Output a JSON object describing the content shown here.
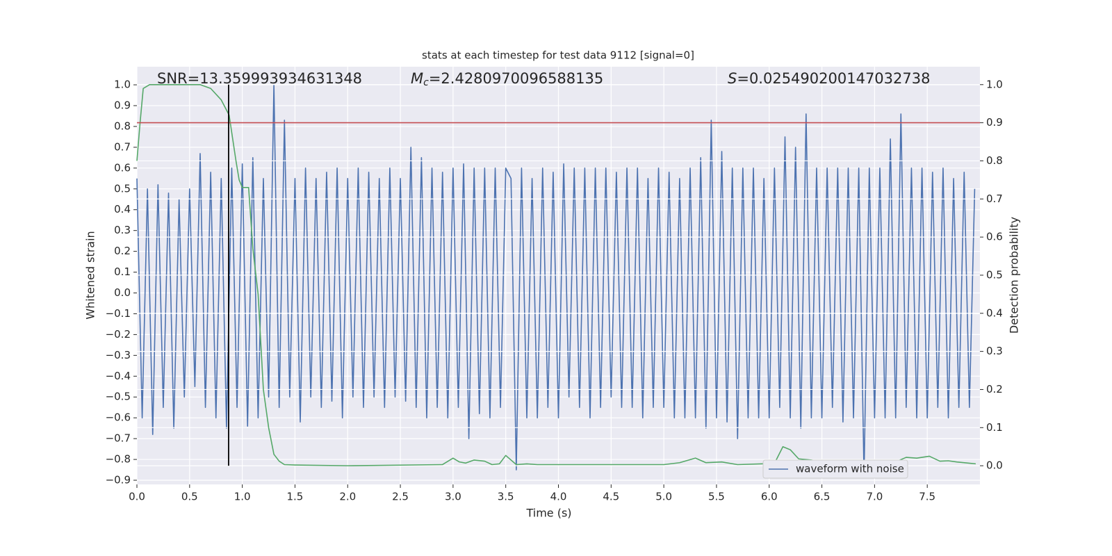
{
  "chart_data": {
    "type": "line",
    "title": "stats at each timestep for test data 9112 [signal=0]",
    "xlabel": "Time (s)",
    "ylabel": "Whitened strain",
    "y2label": "Detection probability",
    "xlim": [
      0,
      8.0
    ],
    "ylim": [
      -0.92,
      1.087
    ],
    "y2lim": [
      -0.049,
      1.047
    ],
    "xticks": [
      {
        "value": 0,
        "label": "0.0"
      },
      {
        "value": 0.5,
        "label": "0.5"
      },
      {
        "value": 1,
        "label": "1.0"
      },
      {
        "value": 1.5,
        "label": "1.5"
      },
      {
        "value": 2,
        "label": "2.0"
      },
      {
        "value": 2.5,
        "label": "2.5"
      },
      {
        "value": 3,
        "label": "3.0"
      },
      {
        "value": 3.5,
        "label": "3.5"
      },
      {
        "value": 4,
        "label": "4.0"
      },
      {
        "value": 4.5,
        "label": "4.5"
      },
      {
        "value": 5,
        "label": "5.0"
      },
      {
        "value": 5.5,
        "label": "5.5"
      },
      {
        "value": 6,
        "label": "6.0"
      },
      {
        "value": 6.5,
        "label": "6.5"
      },
      {
        "value": 7,
        "label": "7.0"
      },
      {
        "value": 7.5,
        "label": "7.5"
      }
    ],
    "yticks": [
      {
        "value": -0.9,
        "label": "−0.9"
      },
      {
        "value": -0.8,
        "label": "−0.8"
      },
      {
        "value": -0.7,
        "label": "−0.7"
      },
      {
        "value": -0.6,
        "label": "−0.6"
      },
      {
        "value": -0.5,
        "label": "−0.5"
      },
      {
        "value": -0.4,
        "label": "−0.4"
      },
      {
        "value": -0.3,
        "label": "−0.3"
      },
      {
        "value": -0.2,
        "label": "−0.2"
      },
      {
        "value": -0.1,
        "label": "−0.1"
      },
      {
        "value": 0,
        "label": "0.0"
      },
      {
        "value": 0.1,
        "label": "0.1"
      },
      {
        "value": 0.2,
        "label": "0.2"
      },
      {
        "value": 0.3,
        "label": "0.3"
      },
      {
        "value": 0.4,
        "label": "0.4"
      },
      {
        "value": 0.5,
        "label": "0.5"
      },
      {
        "value": 0.6,
        "label": "0.6"
      },
      {
        "value": 0.7,
        "label": "0.7"
      },
      {
        "value": 0.8,
        "label": "0.8"
      },
      {
        "value": 0.9,
        "label": "0.9"
      },
      {
        "value": 1,
        "label": "1.0"
      }
    ],
    "y2ticks": [
      {
        "value": 0,
        "label": "0.0"
      },
      {
        "value": 0.1,
        "label": "0.1"
      },
      {
        "value": 0.2,
        "label": "0.2"
      },
      {
        "value": 0.3,
        "label": "0.3"
      },
      {
        "value": 0.4,
        "label": "0.4"
      },
      {
        "value": 0.5,
        "label": "0.5"
      },
      {
        "value": 0.6,
        "label": "0.6"
      },
      {
        "value": 0.7,
        "label": "0.7"
      },
      {
        "value": 0.8,
        "label": "0.8"
      },
      {
        "value": 0.9,
        "label": "0.9"
      },
      {
        "value": 1,
        "label": "1.0"
      }
    ],
    "grid": true,
    "legend": "lower right",
    "series": [
      {
        "name": "waveform with noise",
        "color": "#4c72b0",
        "x": [
          0,
          0.05,
          0.1,
          0.15,
          0.2,
          0.25,
          0.3,
          0.35,
          0.4,
          0.45,
          0.5,
          0.55,
          0.6,
          0.65,
          0.7,
          0.75,
          0.8,
          0.85,
          0.9,
          0.95,
          1,
          1.05,
          1.1,
          1.15,
          1.2,
          1.25,
          1.3,
          1.35,
          1.4,
          1.45,
          1.5,
          1.55,
          1.6,
          1.65,
          1.7,
          1.75,
          1.8,
          1.85,
          1.9,
          1.95,
          2,
          2.05,
          2.1,
          2.15,
          2.2,
          2.25,
          2.3,
          2.35,
          2.4,
          2.45,
          2.5,
          2.55,
          2.6,
          2.65,
          2.7,
          2.75,
          2.8,
          2.85,
          2.9,
          2.95,
          3,
          3.05,
          3.1,
          3.15,
          3.2,
          3.25,
          3.3,
          3.35,
          3.4,
          3.45,
          3.5,
          3.55,
          3.6,
          3.65,
          3.7,
          3.75,
          3.8,
          3.85,
          3.9,
          3.95,
          4,
          4.05,
          4.1,
          4.15,
          4.2,
          4.25,
          4.3,
          4.35,
          4.4,
          4.45,
          4.5,
          4.55,
          4.6,
          4.65,
          4.7,
          4.75,
          4.8,
          4.85,
          4.9,
          4.95,
          5,
          5.05,
          5.1,
          5.15,
          5.2,
          5.25,
          5.3,
          5.35,
          5.4,
          5.45,
          5.5,
          5.55,
          5.6,
          5.65,
          5.7,
          5.75,
          5.8,
          5.85,
          5.9,
          5.95,
          6,
          6.05,
          6.1,
          6.15,
          6.2,
          6.25,
          6.3,
          6.35,
          6.4,
          6.45,
          6.5,
          6.55,
          6.6,
          6.65,
          6.7,
          6.75,
          6.8,
          6.85,
          6.9,
          6.95,
          7,
          7.05,
          7.1,
          7.15,
          7.2,
          7.25,
          7.3,
          7.35,
          7.4,
          7.45,
          7.5,
          7.55,
          7.6,
          7.65,
          7.7,
          7.75,
          7.8,
          7.85,
          7.9,
          7.95
        ],
        "values": [
          0.55,
          -0.6,
          0.5,
          -0.68,
          0.52,
          -0.55,
          0.48,
          -0.65,
          0.45,
          -0.5,
          0.5,
          -0.45,
          0.67,
          -0.55,
          0.58,
          -0.6,
          0.55,
          -0.65,
          0.6,
          -0.55,
          0.62,
          -0.64,
          0.65,
          -0.6,
          0.55,
          -0.5,
          1.0,
          -0.55,
          0.83,
          -0.5,
          0.55,
          -0.62,
          0.6,
          -0.5,
          0.55,
          -0.55,
          0.58,
          -0.52,
          0.6,
          -0.6,
          0.55,
          -0.5,
          0.6,
          -0.55,
          0.58,
          -0.5,
          0.55,
          -0.55,
          0.6,
          -0.5,
          0.55,
          -0.52,
          0.7,
          -0.55,
          0.65,
          -0.6,
          0.6,
          -0.55,
          0.58,
          -0.6,
          0.6,
          -0.55,
          0.62,
          -0.7,
          0.6,
          -0.58,
          0.6,
          -0.6,
          0.6,
          -0.55,
          0.6,
          0.55,
          -0.85,
          0.6,
          -0.6,
          0.55,
          -0.6,
          0.6,
          -0.55,
          0.58,
          -0.6,
          0.62,
          -0.5,
          0.6,
          -0.55,
          0.6,
          -0.6,
          0.6,
          -0.55,
          0.6,
          -0.5,
          0.58,
          -0.55,
          0.6,
          -0.55,
          0.6,
          -0.6,
          0.55,
          -0.55,
          0.6,
          -0.55,
          0.58,
          -0.6,
          0.55,
          -0.6,
          0.6,
          -0.6,
          0.65,
          -0.65,
          0.83,
          -0.6,
          0.68,
          -0.62,
          0.6,
          -0.7,
          0.6,
          -0.6,
          0.6,
          -0.6,
          0.55,
          -0.6,
          0.6,
          -0.55,
          0.75,
          -0.6,
          0.7,
          -0.65,
          0.86,
          -0.6,
          0.6,
          -0.6,
          0.6,
          -0.55,
          0.6,
          -0.62,
          0.6,
          -0.6,
          0.6,
          -0.88,
          0.6,
          -0.6,
          0.6,
          -0.6,
          0.74,
          -0.6,
          0.86,
          -0.55,
          0.6,
          -0.6,
          0.6,
          -0.6,
          0.58,
          -0.55,
          0.6,
          -0.6,
          0.55,
          -0.55,
          0.58,
          -0.55,
          0.5
        ]
      },
      {
        "color": "#55a868",
        "axis": "y2",
        "x": [
          0,
          0.03,
          0.06,
          0.12,
          0.6,
          0.7,
          0.8,
          0.875,
          0.94,
          0.97,
          1.0,
          1.06,
          1.1,
          1.15,
          1.2,
          1.25,
          1.3,
          1.35,
          1.4,
          1.5,
          2.0,
          2.9,
          3.0,
          3.06,
          3.12,
          3.2,
          3.3,
          3.37,
          3.44,
          3.5,
          3.6,
          3.7,
          3.8,
          5.0,
          5.15,
          5.3,
          5.4,
          5.55,
          5.7,
          6.05,
          6.13,
          6.2,
          6.28,
          6.4,
          6.6,
          6.8,
          6.9,
          7.1,
          7.2,
          7.3,
          7.4,
          7.52,
          7.62,
          7.7,
          7.78,
          7.96
        ],
        "values": [
          0.8,
          0.9,
          0.99,
          1.0,
          1.0,
          0.99,
          0.96,
          0.92,
          0.8,
          0.75,
          0.73,
          0.73,
          0.57,
          0.45,
          0.2,
          0.1,
          0.03,
          0.012,
          0.003,
          0.002,
          0.0,
          0.003,
          0.02,
          0.01,
          0.007,
          0.015,
          0.012,
          0.003,
          0.005,
          0.027,
          0.003,
          0.005,
          0.003,
          0.003,
          0.008,
          0.02,
          0.008,
          0.01,
          0.003,
          0.006,
          0.05,
          0.042,
          0.018,
          0.015,
          0.005,
          0.005,
          0.003,
          0.004,
          0.01,
          0.022,
          0.02,
          0.025,
          0.012,
          0.013,
          0.01,
          0.005
        ]
      }
    ],
    "hline": {
      "axis": "y2",
      "y": 0.9,
      "color": "#c44e52"
    },
    "vline": {
      "axis": "y2",
      "x": 0.87,
      "ymin": 0,
      "ymax": 1,
      "color": "#000000"
    },
    "annotations": [
      {
        "text": "SNR=13.359993934631348"
      },
      {
        "symbol": "M",
        "subscript": "c",
        "text": "=2.4280970096588135"
      },
      {
        "symbol": "S",
        "text": "=0.025490200147032738"
      }
    ]
  }
}
